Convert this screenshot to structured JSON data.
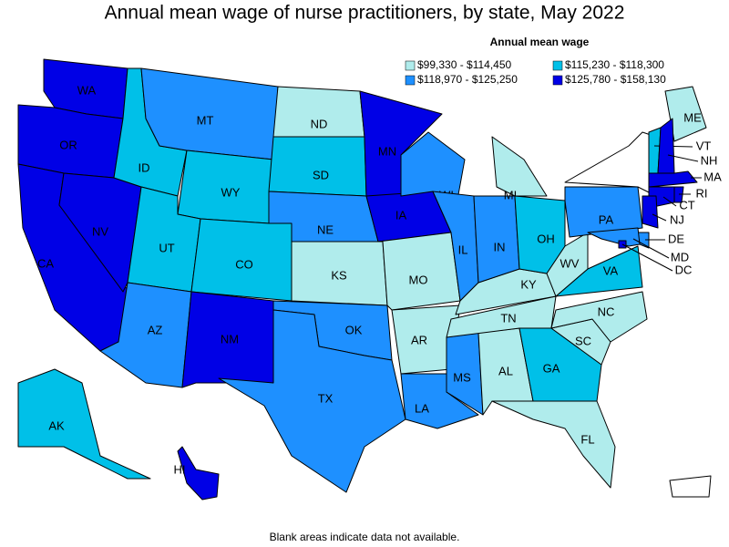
{
  "title": "Annual mean wage of nurse practitioners, by state, May 2022",
  "legend": {
    "title": "Annual mean wage",
    "items": [
      {
        "label": "$99,330 - $114,450",
        "color": "#b0ecec"
      },
      {
        "label": "$115,230 - $118,300",
        "color": "#00c0e8"
      },
      {
        "label": "$118,970 - $125,250",
        "color": "#1e90ff"
      },
      {
        "label": "$125,780 - $158,130",
        "color": "#0000e6"
      }
    ]
  },
  "states": [
    {
      "abbr": "WA",
      "bin": 3
    },
    {
      "abbr": "OR",
      "bin": 3
    },
    {
      "abbr": "CA",
      "bin": 3
    },
    {
      "abbr": "NV",
      "bin": 3
    },
    {
      "abbr": "ID",
      "bin": 1
    },
    {
      "abbr": "MT",
      "bin": 2
    },
    {
      "abbr": "WY",
      "bin": 1
    },
    {
      "abbr": "UT",
      "bin": 1
    },
    {
      "abbr": "CO",
      "bin": 1
    },
    {
      "abbr": "AZ",
      "bin": 2
    },
    {
      "abbr": "NM",
      "bin": 3
    },
    {
      "abbr": "ND",
      "bin": 0
    },
    {
      "abbr": "SD",
      "bin": 1
    },
    {
      "abbr": "NE",
      "bin": 2
    },
    {
      "abbr": "KS",
      "bin": 0
    },
    {
      "abbr": "OK",
      "bin": 2
    },
    {
      "abbr": "TX",
      "bin": 2
    },
    {
      "abbr": "MN",
      "bin": 3
    },
    {
      "abbr": "IA",
      "bin": 3
    },
    {
      "abbr": "MO",
      "bin": 0
    },
    {
      "abbr": "AR",
      "bin": 0
    },
    {
      "abbr": "LA",
      "bin": 2
    },
    {
      "abbr": "WI",
      "bin": 2
    },
    {
      "abbr": "IL",
      "bin": 2
    },
    {
      "abbr": "MS",
      "bin": 2
    },
    {
      "abbr": "AL",
      "bin": 0
    },
    {
      "abbr": "TN",
      "bin": 0
    },
    {
      "abbr": "KY",
      "bin": 0
    },
    {
      "abbr": "IN",
      "bin": 2
    },
    {
      "abbr": "MI",
      "bin": 0
    },
    {
      "abbr": "OH",
      "bin": 1
    },
    {
      "abbr": "GA",
      "bin": 1
    },
    {
      "abbr": "FL",
      "bin": 0
    },
    {
      "abbr": "SC",
      "bin": 0
    },
    {
      "abbr": "NC",
      "bin": 0
    },
    {
      "abbr": "VA",
      "bin": 1
    },
    {
      "abbr": "WV",
      "bin": 0
    },
    {
      "abbr": "PA",
      "bin": 2
    },
    {
      "abbr": "ME",
      "bin": 0
    },
    {
      "abbr": "VT",
      "bin": 1
    },
    {
      "abbr": "NH",
      "bin": 3
    },
    {
      "abbr": "MA",
      "bin": 3
    },
    {
      "abbr": "CT",
      "bin": 3
    },
    {
      "abbr": "RI",
      "bin": 3
    },
    {
      "abbr": "NJ",
      "bin": 3
    },
    {
      "abbr": "DE",
      "bin": 2
    },
    {
      "abbr": "MD",
      "bin": 2
    },
    {
      "abbr": "DC",
      "bin": 3
    },
    {
      "abbr": "AK",
      "bin": 1
    },
    {
      "abbr": "HI",
      "bin": 3
    }
  ],
  "note": "Blank areas indicate data not available."
}
